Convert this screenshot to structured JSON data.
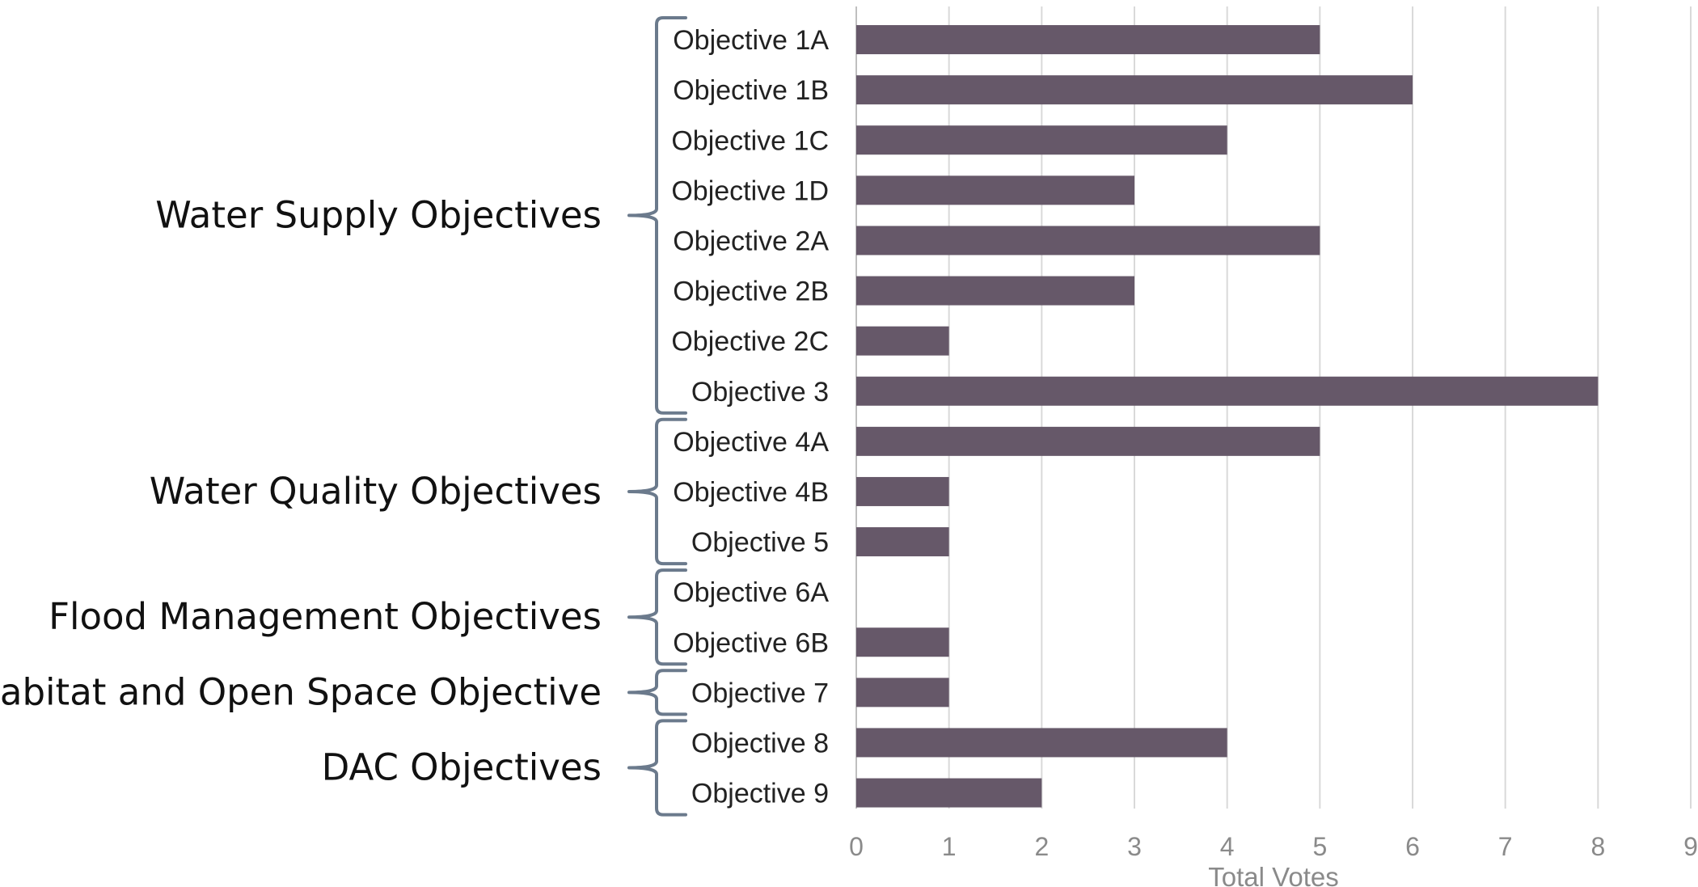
{
  "chart_data": {
    "type": "bar",
    "orientation": "horizontal",
    "categories": [
      "Objective 1A",
      "Objective 1B",
      "Objective 1C",
      "Objective 1D",
      "Objective 2A",
      "Objective 2B",
      "Objective 2C",
      "Objective 3",
      "Objective 4A",
      "Objective 4B",
      "Objective 5",
      "Objective 6A",
      "Objective 6B",
      "Objective 7",
      "Objective 8",
      "Objective 9"
    ],
    "values": [
      5,
      6,
      4,
      3,
      5,
      3,
      1,
      8,
      5,
      1,
      1,
      0,
      1,
      1,
      4,
      2
    ],
    "groups": [
      {
        "label": "Water Supply Objectives",
        "from": 0,
        "to": 7
      },
      {
        "label": "Water Quality Objectives",
        "from": 8,
        "to": 10
      },
      {
        "label": "Flood Management Objectives",
        "from": 11,
        "to": 12
      },
      {
        "label": "Habitat and Open Space Objective",
        "from": 13,
        "to": 13
      },
      {
        "label": "DAC Objectives",
        "from": 14,
        "to": 15
      }
    ],
    "title": "",
    "xlabel": "Total Votes",
    "ylabel": "",
    "xlim": [
      0,
      9
    ],
    "xticks": [
      0,
      1,
      2,
      3,
      4,
      5,
      6,
      7,
      8,
      9
    ],
    "grid": "vertical",
    "legend": "none",
    "bar_color": "#665869",
    "bracket_color": "#6b7a8c"
  }
}
